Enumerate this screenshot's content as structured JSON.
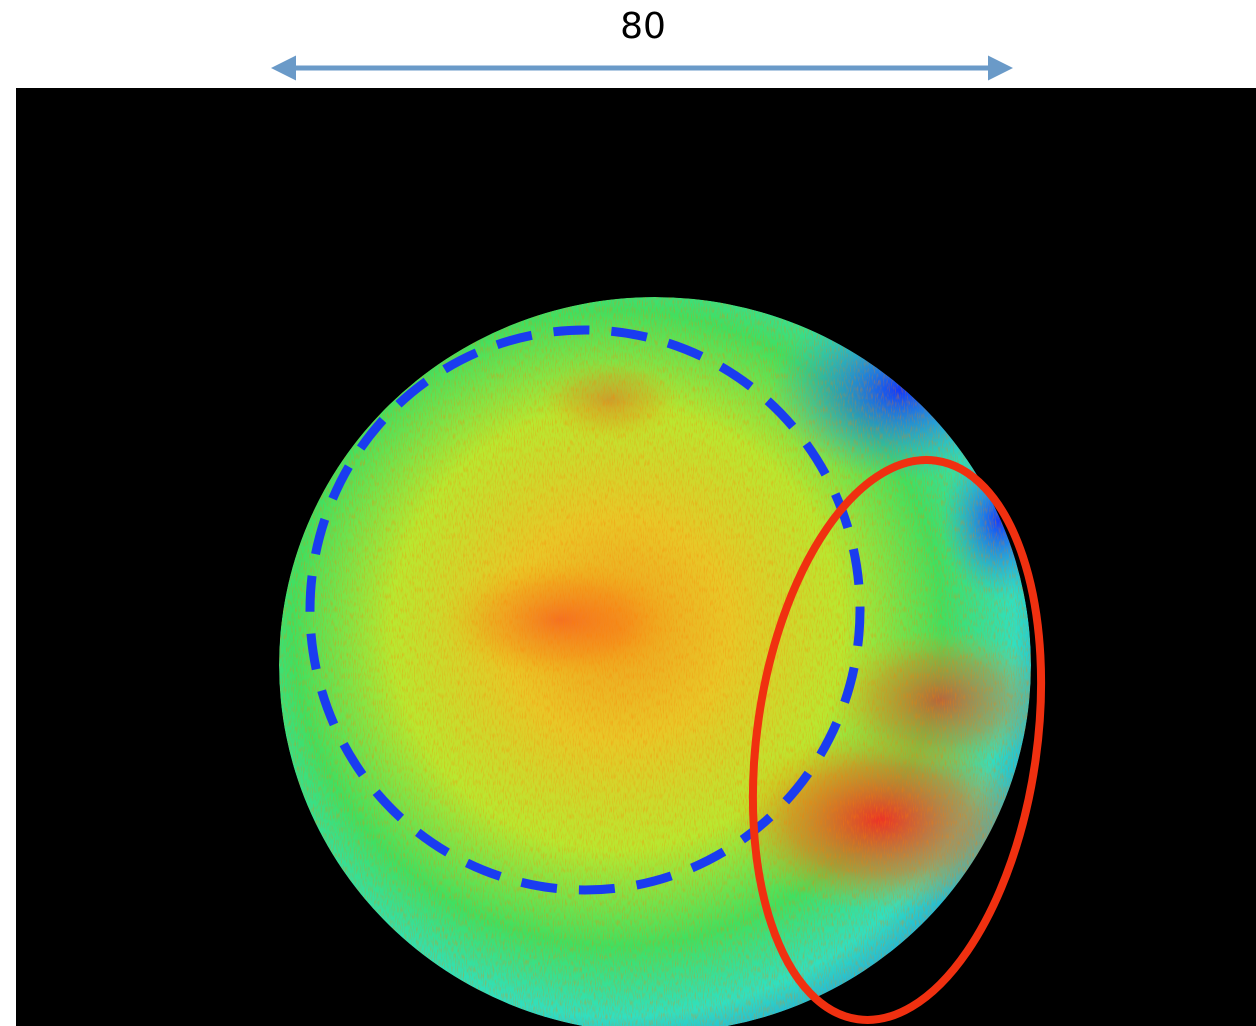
{
  "annotation": {
    "label": "80"
  }
}
